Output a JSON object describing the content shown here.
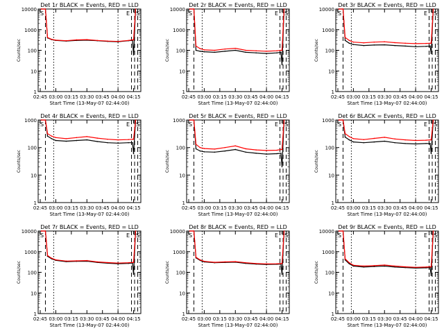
{
  "chart_data": [
    {
      "type": "line",
      "title": "Det 1r BLACK = Events, RED = LLD",
      "xlabel": "Start Time (13-May-07 02:44:00)",
      "ylabel": "Counts/sec",
      "xlim": [
        "02:43",
        "04:22"
      ],
      "ylim": [
        1,
        10000
      ],
      "yscale": "log",
      "xticks": [
        "02:45",
        "03:00",
        "03:15",
        "03:30",
        "03:45",
        "04:00",
        "04:15"
      ],
      "yticks": [
        "1",
        "10",
        "100",
        "1000",
        "10000"
      ],
      "markers": [
        "S",
        "E",
        "S"
      ],
      "series": [
        {
          "name": "Events",
          "color": "#000000",
          "x": [
            "02:46",
            "02:50",
            "02:52",
            "02:56",
            "03:00",
            "03:10",
            "03:20",
            "03:30",
            "03:40",
            "03:50",
            "04:00",
            "04:10",
            "04:14",
            "04:15",
            "04:17"
          ],
          "y": [
            10000,
            10000,
            400,
            330,
            300,
            280,
            300,
            310,
            290,
            270,
            260,
            290,
            300,
            60,
            10000
          ]
        },
        {
          "name": "LLD",
          "color": "#ff0000",
          "x": [
            "02:46",
            "02:50",
            "02:52",
            "02:56",
            "03:00",
            "03:10",
            "03:20",
            "03:30",
            "03:40",
            "03:50",
            "04:00",
            "04:10",
            "04:14",
            "04:15",
            "04:17"
          ],
          "y": [
            10000,
            10000,
            420,
            340,
            310,
            290,
            320,
            330,
            300,
            280,
            270,
            300,
            320,
            320,
            10000
          ]
        }
      ]
    },
    {
      "type": "line",
      "title": "Det 2r BLACK = Events, RED = LLD",
      "xlabel": "Start Time (13-May-07 02:44:00)",
      "ylabel": "Counts/sec",
      "xlim": [
        "02:43",
        "04:22"
      ],
      "ylim": [
        1,
        10000
      ],
      "yscale": "log",
      "xticks": [
        "02:45",
        "03:00",
        "03:15",
        "03:30",
        "03:45",
        "04:00",
        "04:15"
      ],
      "yticks": [
        "1",
        "10",
        "100",
        "1000",
        "10000"
      ],
      "markers": [
        "S",
        "E",
        "S"
      ],
      "series": [
        {
          "name": "Events",
          "color": "#000000",
          "x": [
            "02:46",
            "02:50",
            "02:52",
            "02:56",
            "03:00",
            "03:10",
            "03:20",
            "03:30",
            "03:40",
            "03:50",
            "04:00",
            "04:10",
            "04:14",
            "04:15",
            "04:17"
          ],
          "y": [
            10000,
            10000,
            100,
            90,
            85,
            80,
            90,
            100,
            80,
            75,
            70,
            75,
            80,
            20,
            10000
          ]
        },
        {
          "name": "LLD",
          "color": "#ff0000",
          "x": [
            "02:46",
            "02:50",
            "02:52",
            "02:56",
            "03:00",
            "03:10",
            "03:20",
            "03:30",
            "03:40",
            "03:50",
            "04:00",
            "04:10",
            "04:14",
            "04:15",
            "04:17"
          ],
          "y": [
            10000,
            10000,
            160,
            120,
            105,
            100,
            115,
            125,
            100,
            95,
            90,
            95,
            100,
            100,
            10000
          ]
        }
      ]
    },
    {
      "type": "line",
      "title": "Det 3r BLACK = Events, RED = LLD",
      "xlabel": "Start Time (13-May-07 02:44:00)",
      "ylabel": "Counts/sec",
      "xlim": [
        "02:43",
        "04:22"
      ],
      "ylim": [
        1,
        10000
      ],
      "yscale": "log",
      "xticks": [
        "02:45",
        "03:00",
        "03:15",
        "03:30",
        "03:45",
        "04:00",
        "04:15"
      ],
      "yticks": [
        "1",
        "10",
        "100",
        "1000",
        "10000"
      ],
      "markers": [
        "S",
        "E",
        "S"
      ],
      "series": [
        {
          "name": "Events",
          "color": "#000000",
          "x": [
            "02:46",
            "02:50",
            "02:52",
            "02:56",
            "03:00",
            "03:10",
            "03:20",
            "03:30",
            "03:40",
            "03:50",
            "04:00",
            "04:10",
            "04:14",
            "04:15",
            "04:17"
          ],
          "y": [
            10000,
            10000,
            300,
            220,
            190,
            170,
            180,
            185,
            170,
            160,
            150,
            155,
            160,
            70,
            10000
          ]
        },
        {
          "name": "LLD",
          "color": "#ff0000",
          "x": [
            "02:46",
            "02:50",
            "02:52",
            "02:56",
            "03:00",
            "03:10",
            "03:20",
            "03:30",
            "03:40",
            "03:50",
            "04:00",
            "04:10",
            "04:14",
            "04:15",
            "04:17"
          ],
          "y": [
            10000,
            10000,
            420,
            300,
            250,
            230,
            250,
            260,
            235,
            220,
            210,
            215,
            220,
            220,
            10000
          ]
        }
      ]
    },
    {
      "type": "line",
      "title": "Det 4r BLACK = Events, RED = LLD",
      "xlabel": "Start Time (13-May-07 02:44:00)",
      "ylabel": "Counts/sec",
      "xlim": [
        "02:43",
        "04:22"
      ],
      "ylim": [
        1,
        1000
      ],
      "yscale": "log",
      "xticks": [
        "02:45",
        "03:00",
        "03:15",
        "03:30",
        "03:45",
        "04:00",
        "04:15"
      ],
      "yticks": [
        "1",
        "10",
        "100",
        "1000"
      ],
      "markers": [
        "S",
        "E",
        "S"
      ],
      "series": [
        {
          "name": "Events",
          "color": "#000000",
          "x": [
            "02:46",
            "02:50",
            "02:52",
            "02:56",
            "03:00",
            "03:10",
            "03:20",
            "03:30",
            "03:40",
            "03:50",
            "04:00",
            "04:10",
            "04:14",
            "04:15",
            "04:17"
          ],
          "y": [
            1000,
            1000,
            260,
            210,
            180,
            170,
            180,
            190,
            165,
            150,
            145,
            150,
            150,
            60,
            1000
          ]
        },
        {
          "name": "LLD",
          "color": "#ff0000",
          "x": [
            "02:46",
            "02:50",
            "02:52",
            "02:56",
            "03:00",
            "03:10",
            "03:20",
            "03:30",
            "03:40",
            "03:50",
            "04:00",
            "04:10",
            "04:14",
            "04:15",
            "04:17"
          ],
          "y": [
            1000,
            1000,
            320,
            260,
            230,
            210,
            230,
            250,
            220,
            200,
            190,
            195,
            200,
            200,
            1000
          ]
        }
      ]
    },
    {
      "type": "line",
      "title": "Det 5r BLACK = Events, RED = LLD",
      "xlabel": "Start Time (13-May-07 02:44:00)",
      "ylabel": "Counts/sec",
      "xlim": [
        "02:43",
        "04:22"
      ],
      "ylim": [
        1,
        1000
      ],
      "yscale": "log",
      "xticks": [
        "02:45",
        "03:00",
        "03:15",
        "03:30",
        "03:45",
        "04:00",
        "04:15"
      ],
      "yticks": [
        "1",
        "10",
        "100",
        "1000"
      ],
      "markers": [
        "S",
        "E",
        "S"
      ],
      "series": [
        {
          "name": "Events",
          "color": "#000000",
          "x": [
            "02:46",
            "02:50",
            "02:52",
            "02:56",
            "03:00",
            "03:10",
            "03:20",
            "03:30",
            "03:40",
            "03:50",
            "04:00",
            "04:10",
            "04:14",
            "04:15",
            "04:17"
          ],
          "y": [
            1000,
            1000,
            90,
            75,
            70,
            68,
            75,
            85,
            68,
            62,
            58,
            60,
            62,
            20,
            1000
          ]
        },
        {
          "name": "LLD",
          "color": "#ff0000",
          "x": [
            "02:46",
            "02:50",
            "02:52",
            "02:56",
            "03:00",
            "03:10",
            "03:20",
            "03:30",
            "03:40",
            "03:50",
            "04:00",
            "04:10",
            "04:14",
            "04:15",
            "04:17"
          ],
          "y": [
            1000,
            1000,
            130,
            100,
            92,
            88,
            100,
            115,
            90,
            82,
            78,
            80,
            85,
            85,
            1000
          ]
        }
      ]
    },
    {
      "type": "line",
      "title": "Det 6r BLACK = Events, RED = LLD",
      "xlabel": "Start Time (13-May-07 02:44:00)",
      "ylabel": "Counts/sec",
      "xlim": [
        "02:43",
        "04:22"
      ],
      "ylim": [
        1,
        1000
      ],
      "yscale": "log",
      "xticks": [
        "02:45",
        "03:00",
        "03:15",
        "03:30",
        "03:45",
        "04:00",
        "04:15"
      ],
      "yticks": [
        "1",
        "10",
        "100",
        "1000"
      ],
      "markers": [
        "S",
        "E",
        "S"
      ],
      "series": [
        {
          "name": "Events",
          "color": "#000000",
          "x": [
            "02:46",
            "02:50",
            "02:52",
            "02:56",
            "03:00",
            "03:10",
            "03:20",
            "03:30",
            "03:40",
            "03:50",
            "04:00",
            "04:10",
            "04:14",
            "04:15",
            "04:17"
          ],
          "y": [
            1000,
            1000,
            240,
            190,
            160,
            150,
            160,
            170,
            150,
            140,
            135,
            140,
            140,
            60,
            1000
          ]
        },
        {
          "name": "LLD",
          "color": "#ff0000",
          "x": [
            "02:46",
            "02:50",
            "02:52",
            "02:56",
            "03:00",
            "03:10",
            "03:20",
            "03:30",
            "03:40",
            "03:50",
            "04:00",
            "04:10",
            "04:14",
            "04:15",
            "04:17"
          ],
          "y": [
            1000,
            1000,
            320,
            250,
            210,
            195,
            215,
            235,
            205,
            190,
            180,
            185,
            190,
            190,
            1000
          ]
        }
      ]
    },
    {
      "type": "line",
      "title": "Det 7r BLACK = Events, RED = LLD",
      "xlabel": "Start Time (13-May-07 02:44:00)",
      "ylabel": "Counts/sec",
      "xlim": [
        "02:43",
        "04:22"
      ],
      "ylim": [
        1,
        10000
      ],
      "yscale": "log",
      "xticks": [
        "02:45",
        "03:00",
        "03:15",
        "03:30",
        "03:45",
        "04:00",
        "04:15"
      ],
      "yticks": [
        "1",
        "10",
        "100",
        "1000",
        "10000"
      ],
      "markers": [
        "S",
        "E",
        "S"
      ],
      "series": [
        {
          "name": "Events",
          "color": "#000000",
          "x": [
            "02:46",
            "02:50",
            "02:52",
            "02:56",
            "03:00",
            "03:10",
            "03:20",
            "03:30",
            "03:40",
            "03:50",
            "04:00",
            "04:10",
            "04:14",
            "04:15",
            "04:17"
          ],
          "y": [
            10000,
            10000,
            600,
            450,
            380,
            330,
            340,
            345,
            300,
            275,
            260,
            270,
            280,
            80,
            10000
          ]
        },
        {
          "name": "LLD",
          "color": "#ff0000",
          "x": [
            "02:46",
            "02:50",
            "02:52",
            "02:56",
            "03:00",
            "03:10",
            "03:20",
            "03:30",
            "03:40",
            "03:50",
            "04:00",
            "04:10",
            "04:14",
            "04:15",
            "04:17"
          ],
          "y": [
            10000,
            10000,
            650,
            480,
            400,
            350,
            360,
            370,
            320,
            295,
            280,
            290,
            300,
            300,
            10000
          ]
        }
      ]
    },
    {
      "type": "line",
      "title": "Det 8r BLACK = Events, RED = LLD",
      "xlabel": "Start Time (13-May-07 02:44:00)",
      "ylabel": "Counts/sec",
      "xlim": [
        "02:43",
        "04:22"
      ],
      "ylim": [
        1,
        10000
      ],
      "yscale": "log",
      "xticks": [
        "02:45",
        "03:00",
        "03:15",
        "03:30",
        "03:45",
        "04:00",
        "04:15"
      ],
      "yticks": [
        "1",
        "10",
        "100",
        "1000",
        "10000"
      ],
      "markers": [
        "S",
        "E",
        "S"
      ],
      "series": [
        {
          "name": "Events",
          "color": "#000000",
          "x": [
            "02:46",
            "02:50",
            "02:52",
            "02:56",
            "03:00",
            "03:10",
            "03:20",
            "03:30",
            "03:40",
            "03:50",
            "04:00",
            "04:10",
            "04:14",
            "04:15",
            "04:17"
          ],
          "y": [
            10000,
            10000,
            500,
            380,
            320,
            290,
            300,
            310,
            270,
            250,
            240,
            245,
            250,
            80,
            10000
          ]
        },
        {
          "name": "LLD",
          "color": "#ff0000",
          "x": [
            "02:46",
            "02:50",
            "02:52",
            "02:56",
            "03:00",
            "03:10",
            "03:20",
            "03:30",
            "03:40",
            "03:50",
            "04:00",
            "04:10",
            "04:14",
            "04:15",
            "04:17"
          ],
          "y": [
            10000,
            10000,
            540,
            400,
            340,
            305,
            320,
            330,
            290,
            265,
            255,
            260,
            265,
            265,
            10000
          ]
        }
      ]
    },
    {
      "type": "line",
      "title": "Det 9r BLACK = Events, RED = LLD",
      "xlabel": "Start Time (13-May-07 02:44:00)",
      "ylabel": "Counts/sec",
      "xlim": [
        "02:43",
        "04:22"
      ],
      "ylim": [
        1,
        10000
      ],
      "yscale": "log",
      "xticks": [
        "02:45",
        "03:00",
        "03:15",
        "03:30",
        "03:45",
        "04:00",
        "04:15"
      ],
      "yticks": [
        "1",
        "10",
        "100",
        "1000",
        "10000"
      ],
      "markers": [
        "S",
        "E",
        "S"
      ],
      "series": [
        {
          "name": "Events",
          "color": "#000000",
          "x": [
            "02:46",
            "02:50",
            "02:52",
            "02:56",
            "03:00",
            "03:10",
            "03:20",
            "03:30",
            "03:40",
            "03:50",
            "04:00",
            "04:10",
            "04:14",
            "04:15",
            "04:17"
          ],
          "y": [
            10000,
            10000,
            400,
            260,
            200,
            180,
            190,
            200,
            180,
            170,
            160,
            165,
            170,
            70,
            10000
          ]
        },
        {
          "name": "LLD",
          "color": "#ff0000",
          "x": [
            "02:46",
            "02:50",
            "02:52",
            "02:56",
            "03:00",
            "03:10",
            "03:20",
            "03:30",
            "03:40",
            "03:50",
            "04:00",
            "04:10",
            "04:14",
            "04:15",
            "04:17"
          ],
          "y": [
            10000,
            10000,
            450,
            290,
            220,
            200,
            210,
            225,
            200,
            185,
            175,
            180,
            185,
            185,
            10000
          ]
        }
      ]
    }
  ]
}
